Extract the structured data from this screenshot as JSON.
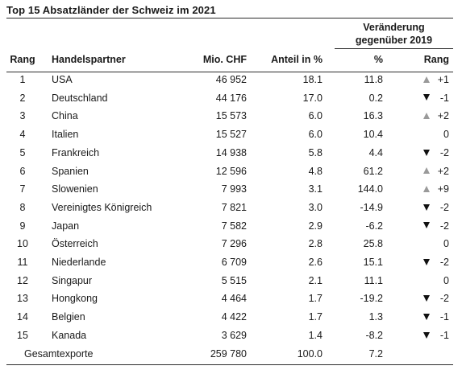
{
  "title": "Top 15 Absatzländer der Schweiz im 2021",
  "group_header": {
    "line1": "Veränderung",
    "line2": "gegenüber 2019"
  },
  "columns": {
    "rang": "Rang",
    "partner": "Handelspartner",
    "mio": "Mio. CHF",
    "anteil": "Anteil in %",
    "pct": "%",
    "rang_change": "Rang"
  },
  "colors": {
    "up": "#9a9a9a",
    "down": "#111111"
  },
  "rows": [
    {
      "rang": "1",
      "partner": "USA",
      "mio": "46 952",
      "anteil": "18.1",
      "pct": "11.8",
      "dir": "up",
      "chg": "+1"
    },
    {
      "rang": "2",
      "partner": "Deutschland",
      "mio": "44 176",
      "anteil": "17.0",
      "pct": "0.2",
      "dir": "down",
      "chg": "-1"
    },
    {
      "rang": "3",
      "partner": "China",
      "mio": "15 573",
      "anteil": "6.0",
      "pct": "16.3",
      "dir": "up",
      "chg": "+2"
    },
    {
      "rang": "4",
      "partner": "Italien",
      "mio": "15 527",
      "anteil": "6.0",
      "pct": "10.4",
      "dir": "none",
      "chg": "0"
    },
    {
      "rang": "5",
      "partner": "Frankreich",
      "mio": "14 938",
      "anteil": "5.8",
      "pct": "4.4",
      "dir": "down",
      "chg": "-2"
    },
    {
      "rang": "6",
      "partner": "Spanien",
      "mio": "12 596",
      "anteil": "4.8",
      "pct": "61.2",
      "dir": "up",
      "chg": "+2"
    },
    {
      "rang": "7",
      "partner": "Slowenien",
      "mio": "7 993",
      "anteil": "3.1",
      "pct": "144.0",
      "dir": "up",
      "chg": "+9"
    },
    {
      "rang": "8",
      "partner": "Vereinigtes Königreich",
      "mio": "7 821",
      "anteil": "3.0",
      "pct": "-14.9",
      "dir": "down",
      "chg": "-2"
    },
    {
      "rang": "9",
      "partner": "Japan",
      "mio": "7 582",
      "anteil": "2.9",
      "pct": "-6.2",
      "dir": "down",
      "chg": "-2"
    },
    {
      "rang": "10",
      "partner": "Österreich",
      "mio": "7 296",
      "anteil": "2.8",
      "pct": "25.8",
      "dir": "none",
      "chg": "0"
    },
    {
      "rang": "11",
      "partner": "Niederlande",
      "mio": "6 709",
      "anteil": "2.6",
      "pct": "15.1",
      "dir": "down",
      "chg": "-2"
    },
    {
      "rang": "12",
      "partner": "Singapur",
      "mio": "5 515",
      "anteil": "2.1",
      "pct": "11.1",
      "dir": "none",
      "chg": "0"
    },
    {
      "rang": "13",
      "partner": "Hongkong",
      "mio": "4 464",
      "anteil": "1.7",
      "pct": "-19.2",
      "dir": "down",
      "chg": "-2"
    },
    {
      "rang": "14",
      "partner": "Belgien",
      "mio": "4 422",
      "anteil": "1.7",
      "pct": "1.3",
      "dir": "down",
      "chg": "-1"
    },
    {
      "rang": "15",
      "partner": "Kanada",
      "mio": "3 629",
      "anteil": "1.4",
      "pct": "-8.2",
      "dir": "down",
      "chg": "-1"
    }
  ],
  "total": {
    "label": "Gesamtexporte",
    "mio": "259 780",
    "anteil": "100.0",
    "pct": "7.2"
  }
}
